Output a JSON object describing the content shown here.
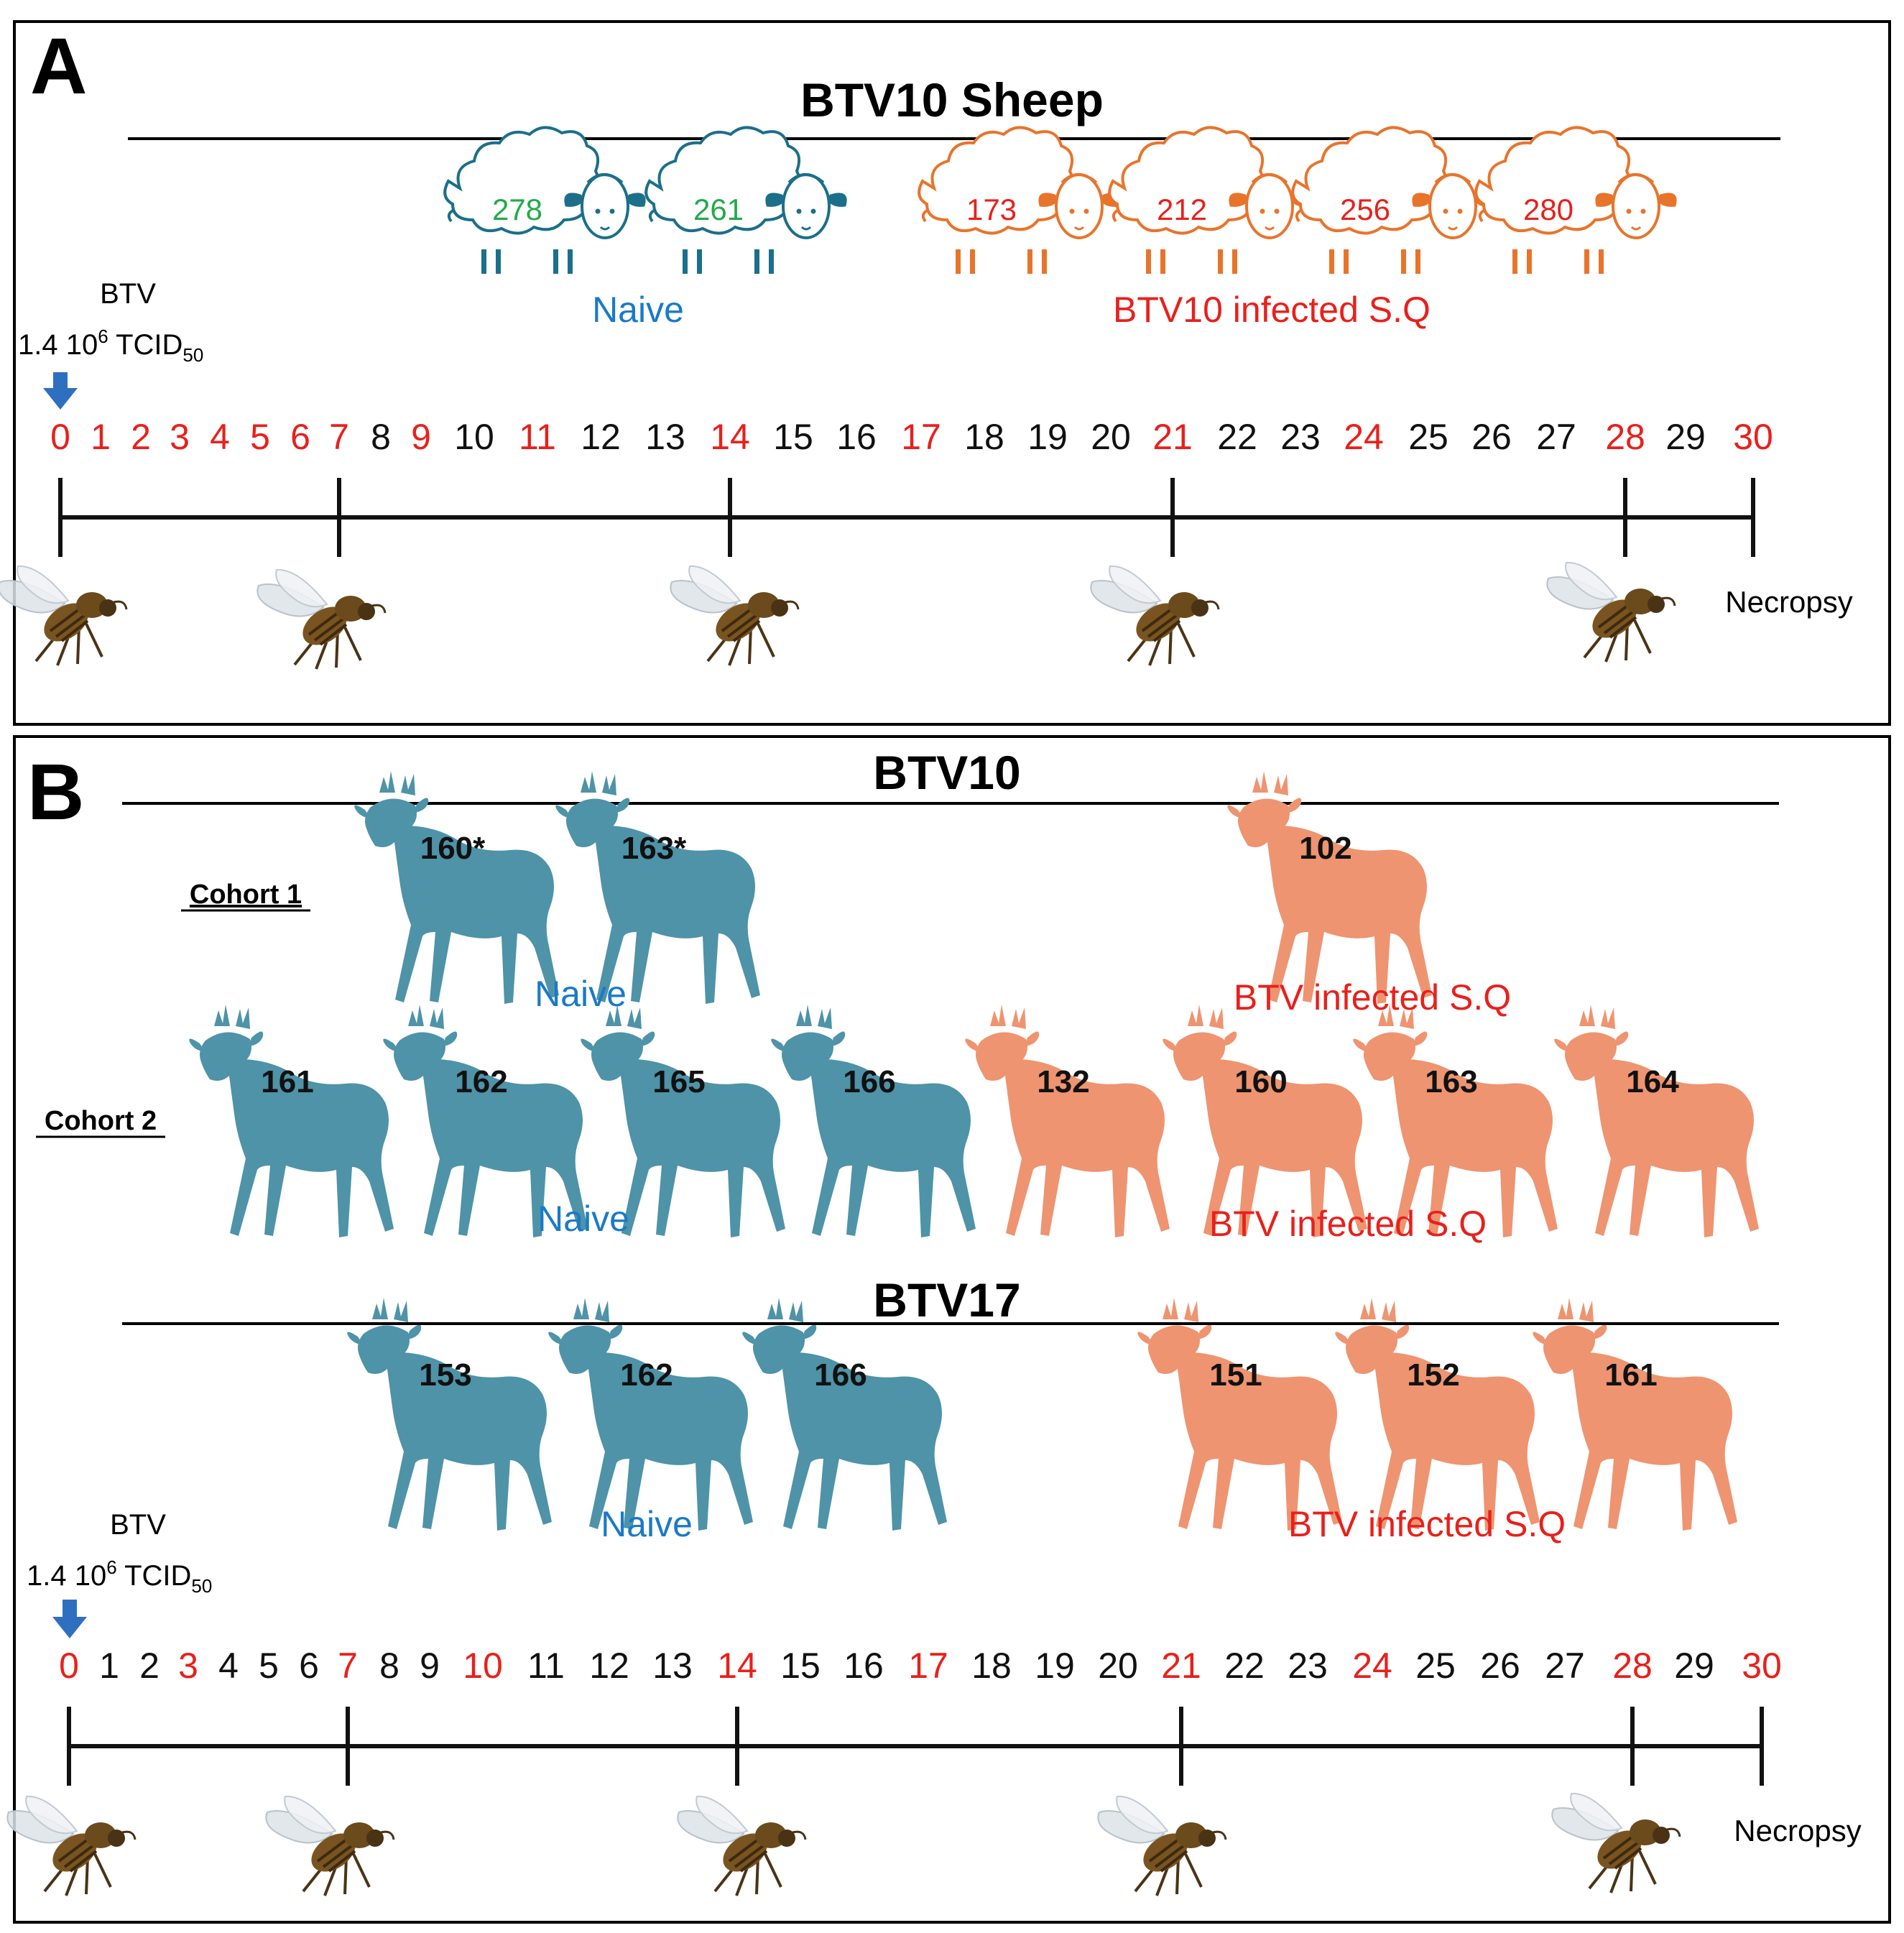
{
  "colors": {
    "naive_sheep_text": "#22aa4a",
    "naive_sheep_outline": "#1b6f8a",
    "infected_sheep": "#e8742c",
    "naive_label": "#1a7ac7",
    "infected_label": "#e8201c",
    "red_day": "#e8201c",
    "black_day": "#111111",
    "deer_naive": "#4e93a8",
    "deer_infected": "#ee9470",
    "arrow": "#2f6fc0"
  },
  "panelA": {
    "letter": "A",
    "title": "BTV10 Sheep",
    "naive_ids": [
      "278",
      "261"
    ],
    "infected_ids": [
      "173",
      "212",
      "256",
      "280"
    ],
    "naive_label": "Naive",
    "infected_label": "BTV10 infected S.Q",
    "dose_line1": "BTV",
    "dose_line2_main": "1.4 10",
    "dose_sup": "6",
    "dose_tcid": " TCID",
    "dose_sub": "50",
    "days": [
      {
        "d": "0",
        "red": true
      },
      {
        "d": "1",
        "red": true
      },
      {
        "d": "2",
        "red": true
      },
      {
        "d": "3",
        "red": true
      },
      {
        "d": "4",
        "red": true
      },
      {
        "d": "5",
        "red": true
      },
      {
        "d": "6",
        "red": true
      },
      {
        "d": "7",
        "red": true
      },
      {
        "d": "8",
        "red": false
      },
      {
        "d": "9",
        "red": true
      },
      {
        "d": "10",
        "red": false
      },
      {
        "d": "11",
        "red": true
      },
      {
        "d": "12",
        "red": false
      },
      {
        "d": "13",
        "red": false
      },
      {
        "d": "14",
        "red": true
      },
      {
        "d": "15",
        "red": false
      },
      {
        "d": "16",
        "red": false
      },
      {
        "d": "17",
        "red": true
      },
      {
        "d": "18",
        "red": false
      },
      {
        "d": "19",
        "red": false
      },
      {
        "d": "20",
        "red": false
      },
      {
        "d": "21",
        "red": true
      },
      {
        "d": "22",
        "red": false
      },
      {
        "d": "23",
        "red": false
      },
      {
        "d": "24",
        "red": true
      },
      {
        "d": "25",
        "red": false
      },
      {
        "d": "26",
        "red": false
      },
      {
        "d": "27",
        "red": false
      },
      {
        "d": "28",
        "red": true
      },
      {
        "d": "29",
        "red": false
      },
      {
        "d": "30",
        "red": true
      }
    ],
    "necropsy": "Necropsy"
  },
  "panelB": {
    "letter": "B",
    "btv10_title": "BTV10",
    "cohort1_label": "Cohort 1",
    "cohort1_naive": [
      "160*",
      "163*"
    ],
    "cohort1_infected": [
      "102"
    ],
    "cohort1_naive_label": "Naive",
    "cohort1_infected_label": "BTV infected S.Q",
    "cohort2_label": "Cohort 2",
    "cohort2_naive": [
      "161",
      "162",
      "165",
      "166"
    ],
    "cohort2_infected": [
      "132",
      "160",
      "163",
      "164"
    ],
    "cohort2_naive_label": "Naive",
    "cohort2_infected_label": "BTV infected S.Q",
    "btv17_title": "BTV17",
    "btv17_naive": [
      "153",
      "162",
      "166"
    ],
    "btv17_infected": [
      "151",
      "152",
      "161"
    ],
    "btv17_naive_label": "Naive",
    "btv17_infected_label": "BTV infected S.Q",
    "dose_line1": "BTV",
    "dose_line2_main": "1.4 10",
    "dose_sup": "6",
    "dose_tcid": " TCID",
    "dose_sub": "50",
    "days": [
      {
        "d": "0",
        "red": true
      },
      {
        "d": "1",
        "red": false
      },
      {
        "d": "2",
        "red": false
      },
      {
        "d": "3",
        "red": true
      },
      {
        "d": "4",
        "red": false
      },
      {
        "d": "5",
        "red": false
      },
      {
        "d": "6",
        "red": false
      },
      {
        "d": "7",
        "red": true
      },
      {
        "d": "8",
        "red": false
      },
      {
        "d": "9",
        "red": false
      },
      {
        "d": "10",
        "red": true
      },
      {
        "d": "11",
        "red": false
      },
      {
        "d": "12",
        "red": false
      },
      {
        "d": "13",
        "red": false
      },
      {
        "d": "14",
        "red": true
      },
      {
        "d": "15",
        "red": false
      },
      {
        "d": "16",
        "red": false
      },
      {
        "d": "17",
        "red": true
      },
      {
        "d": "18",
        "red": false
      },
      {
        "d": "19",
        "red": false
      },
      {
        "d": "20",
        "red": false
      },
      {
        "d": "21",
        "red": true
      },
      {
        "d": "22",
        "red": false
      },
      {
        "d": "23",
        "red": false
      },
      {
        "d": "24",
        "red": true
      },
      {
        "d": "25",
        "red": false
      },
      {
        "d": "26",
        "red": false
      },
      {
        "d": "27",
        "red": false
      },
      {
        "d": "28",
        "red": true
      },
      {
        "d": "29",
        "red": false
      },
      {
        "d": "30",
        "red": true
      }
    ],
    "necropsy": "Necropsy"
  }
}
